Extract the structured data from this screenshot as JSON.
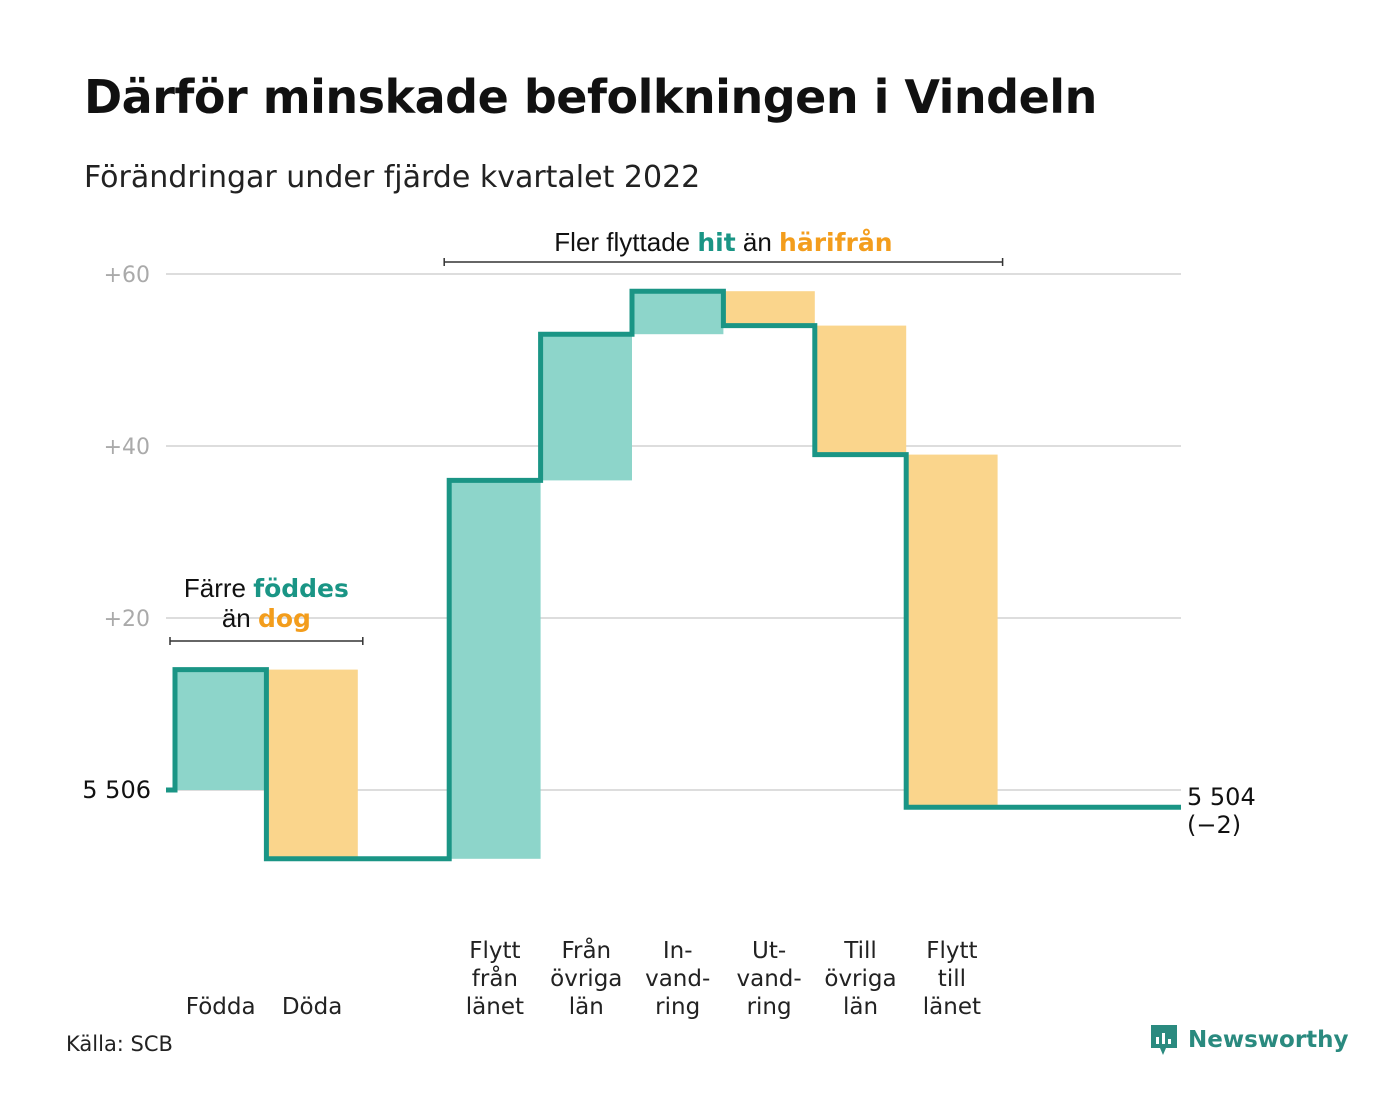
{
  "title": "Därför minskade befolkningen i Vindeln",
  "subtitle": "Förändringar under fjärde kvartalet 2022",
  "source": "Källa: SCB",
  "brand": {
    "name": "Newsworthy",
    "icon": "newsworthy-logo-icon"
  },
  "colors": {
    "increase_fill": "#8dd5ca",
    "decrease_fill": "#fad58c",
    "step_line": "#1a9585",
    "increase_text": "#1a9585",
    "decrease_text": "#f39d1c",
    "grid": "#dddddd",
    "bracket": "#333333"
  },
  "chart_data": {
    "type": "waterfall",
    "start": {
      "label": "5 506",
      "value": 0
    },
    "end": {
      "label": "5 504",
      "change_label": "(−2)",
      "value": -2
    },
    "yticks": [
      {
        "value": 20,
        "label": "+20"
      },
      {
        "value": 40,
        "label": "+40"
      },
      {
        "value": 60,
        "label": "+60"
      }
    ],
    "ylim": [
      -8,
      62
    ],
    "steps": [
      {
        "name": "Födda",
        "lines": [
          "Födda"
        ],
        "change": 14,
        "kind": "increase"
      },
      {
        "name": "Döda",
        "lines": [
          "Döda"
        ],
        "change": -22,
        "kind": "decrease"
      },
      {
        "name": "",
        "lines": [],
        "change": 0,
        "kind": "empty"
      },
      {
        "name": "Flytt från länet",
        "lines": [
          "Flytt",
          "från",
          "länet"
        ],
        "change": 44,
        "kind": "increase"
      },
      {
        "name": "Från övriga län",
        "lines": [
          "Från",
          "övriga",
          "län"
        ],
        "change": 17,
        "kind": "increase"
      },
      {
        "name": "In-vand-ring",
        "lines": [
          "In-",
          "vand-",
          "ring"
        ],
        "change": 5,
        "kind": "increase"
      },
      {
        "name": "Ut-vand-ring",
        "lines": [
          "Ut-",
          "vand-",
          "ring"
        ],
        "change": -4,
        "kind": "decrease"
      },
      {
        "name": "Till övriga län",
        "lines": [
          "Till",
          "övriga",
          "län"
        ],
        "change": -15,
        "kind": "decrease"
      },
      {
        "name": "Flytt till länet",
        "lines": [
          "Flytt",
          "till",
          "länet"
        ],
        "change": -41,
        "kind": "decrease"
      }
    ],
    "annotations": [
      {
        "steps": [
          0,
          1
        ],
        "line1": [
          {
            "text": "Färre ",
            "style": "plain"
          },
          {
            "text": "föddes",
            "style": "increase"
          }
        ],
        "line2": [
          {
            "text": "än ",
            "style": "plain"
          },
          {
            "text": "dog",
            "style": "decrease"
          }
        ]
      },
      {
        "steps": [
          3,
          8
        ],
        "line1": [
          {
            "text": "Fler flyttade ",
            "style": "plain"
          },
          {
            "text": "hit",
            "style": "increase"
          },
          {
            "text": " än ",
            "style": "plain"
          },
          {
            "text": "härifrån",
            "style": "decrease"
          }
        ]
      }
    ]
  }
}
